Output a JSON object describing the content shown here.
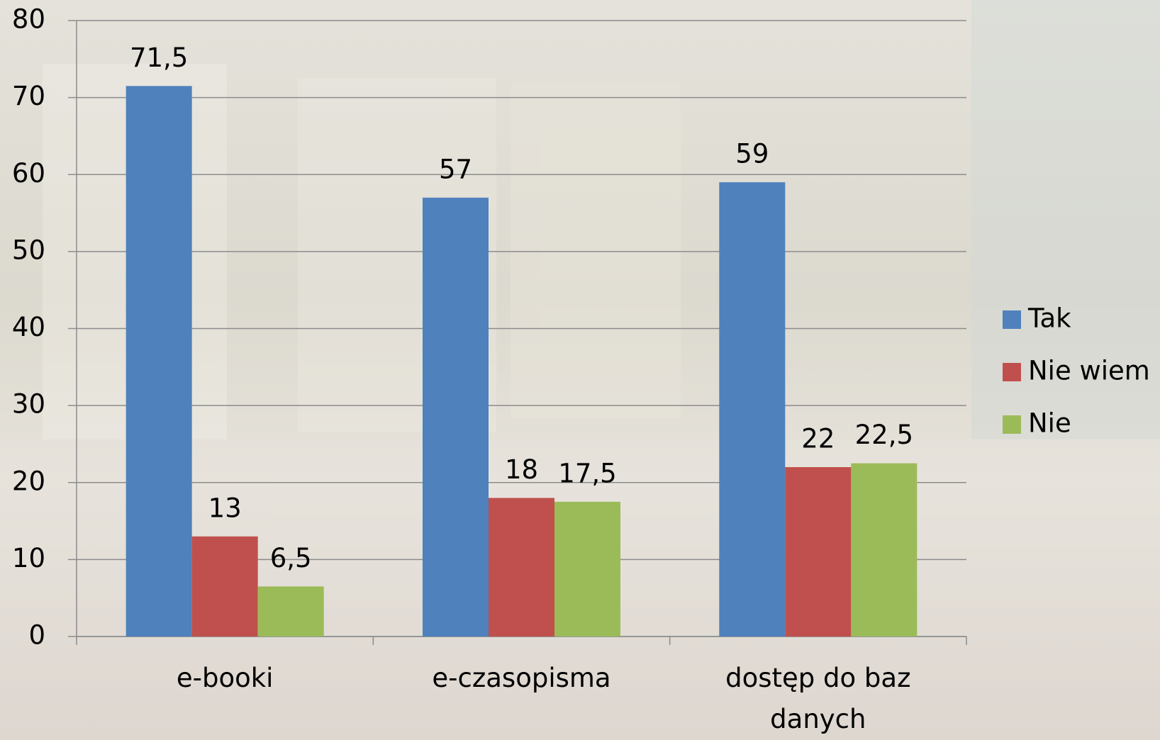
{
  "chart_data": {
    "type": "bar",
    "categories": [
      "e-booki",
      "e-czasopisma",
      "dostęp do baz danych"
    ],
    "series": [
      {
        "name": "Tak",
        "color": "#4f81bd",
        "values": [
          71.5,
          57,
          59
        ],
        "value_labels": [
          "71,5",
          "57",
          "59"
        ]
      },
      {
        "name": "Nie wiem",
        "color": "#c0504d",
        "values": [
          13,
          18,
          22
        ],
        "value_labels": [
          "13",
          "18",
          "22"
        ]
      },
      {
        "name": "Nie",
        "color": "#9bbb59",
        "values": [
          6.5,
          17.5,
          22.5
        ],
        "value_labels": [
          "6,5",
          "17,5",
          "22,5"
        ]
      }
    ],
    "ylim": [
      0,
      80
    ],
    "yticks": [
      0,
      10,
      20,
      30,
      40,
      50,
      60,
      70,
      80
    ],
    "grid": true,
    "legend": "right"
  }
}
